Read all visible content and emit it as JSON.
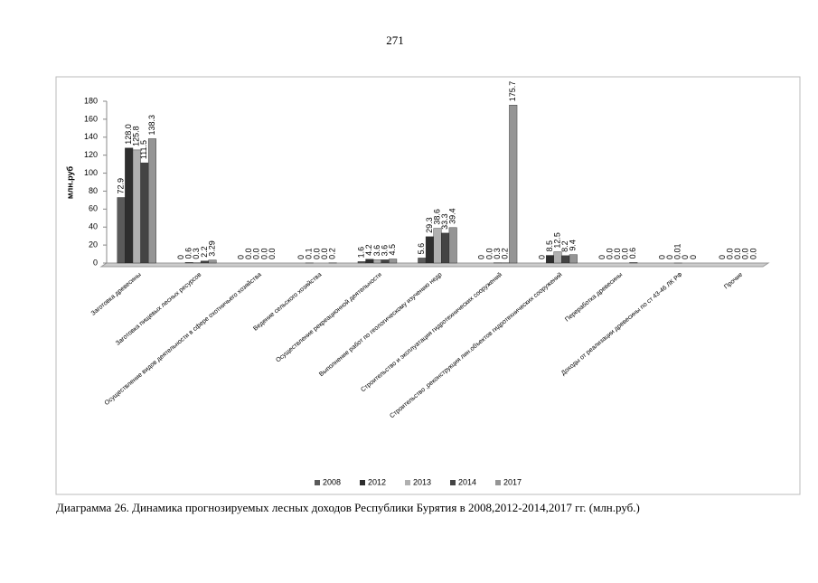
{
  "page_number": "271",
  "caption": "Диаграмма 26. Динамика прогнозируемых лесных доходов Республики Бурятия в 2008,2012-2014,2017 гг. (млн.руб.)",
  "chart_data": {
    "type": "bar",
    "y_label": "млн.руб",
    "categories": [
      "Заготовка древесины",
      "Заготовка пищевых лесных ресурсов",
      "Осуществление видов деятельности в сфере охотничьего хозяйства",
      "Ведение сельского хозяйства",
      "Осуществление рекреационной деятельности",
      "Выполнение работ по геологическому изучению недр",
      "Строительство и эксплуатация гидротехнических сооружений",
      "Строительство ,реконструкция лин.объектов гидротехнических сооружений",
      "Переработка древесины",
      "Доходы от реализации древесины по ст 43-46 ЛК РФ",
      "Прочие"
    ],
    "series": [
      {
        "name": "2008",
        "color": "#5a5a5a",
        "values": [
          72.9,
          0,
          0,
          0,
          1.6,
          5.6,
          0,
          0,
          0,
          0,
          0
        ],
        "value_labels": [
          "72.9",
          "0",
          "0",
          "0",
          "1.6",
          "5.6",
          "0",
          "0",
          "0",
          "0",
          "0"
        ]
      },
      {
        "name": "2012",
        "color": "#2e2e2e",
        "values": [
          128.0,
          0.6,
          0.0,
          0.1,
          4.2,
          29.3,
          0.0,
          8.5,
          0.0,
          0,
          0.0
        ],
        "value_labels": [
          "128.0",
          "0.6",
          "0.0",
          "0.1",
          "4.2",
          "29.3",
          "0.0",
          "8.5",
          "0.0",
          "0",
          "0.0"
        ]
      },
      {
        "name": "2013",
        "color": "#b0b0b0",
        "values": [
          125.8,
          0.3,
          0.0,
          0.0,
          3.6,
          38.6,
          0.3,
          12.5,
          0.0,
          0.01,
          0.0
        ],
        "value_labels": [
          "125.8",
          "0.3",
          "0.0",
          "0.0",
          "3.6",
          "38.6",
          "0.3",
          "12.5",
          "0.0",
          "0.01",
          "0.0"
        ]
      },
      {
        "name": "2014",
        "color": "#444444",
        "values": [
          111.5,
          2.2,
          0.0,
          0.0,
          3.6,
          33.3,
          0.2,
          8.2,
          0.0,
          0,
          0.0
        ],
        "value_labels": [
          "111.5",
          "2.2",
          "0.0",
          "0.0",
          "3.6",
          "33.3",
          "0.2",
          "8.2",
          "0.0",
          "0",
          "0.0"
        ]
      },
      {
        "name": "2017",
        "color": "#959595",
        "values": [
          138.3,
          3.29,
          0.0,
          0.2,
          4.5,
          39.4,
          175.7,
          9.4,
          0.6,
          0,
          0.0
        ],
        "value_labels": [
          "138.3",
          "3.29",
          "0.0",
          "0.2",
          "4.5",
          "39.4",
          "175.7",
          "9.4",
          "0.6",
          "0",
          "0.0"
        ]
      }
    ],
    "ylim": [
      0,
      180
    ],
    "yticks": [
      0,
      20,
      40,
      60,
      80,
      100,
      120,
      140,
      160,
      180
    ],
    "legend": "bottom"
  }
}
